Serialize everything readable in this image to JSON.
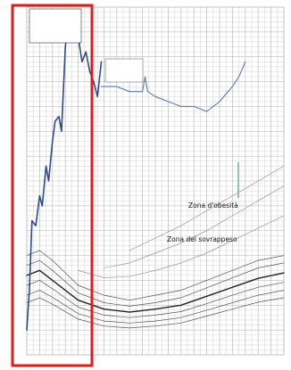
{
  "chart_data": {
    "type": "line",
    "title": "",
    "xlabel": "",
    "ylabel": "",
    "legend_box_lines": [
      "",
      "",
      "",
      ""
    ],
    "annotation_box_lines": [
      "",
      "",
      ""
    ],
    "zone_labels": {
      "obesity": "Zona d'obesità",
      "overweight": "Zona del sovrappeso"
    },
    "colors": {
      "patient": "#2d4a8a",
      "patient_tail": "#5a7ab0",
      "reference": "#555555",
      "grid": "#bdbdbd",
      "highlight": "#e01b1b",
      "vertical_marker": "#7cb89a"
    },
    "xlim": [
      0,
      20
    ],
    "ylim": [
      10,
      80
    ],
    "series": [
      {
        "kind": "patient",
        "x": [
          0,
          0.2,
          0.4,
          0.7,
          1.0,
          1.2,
          1.5,
          1.7,
          2.0,
          2.2,
          2.5,
          2.7,
          3.0,
          3.2,
          3.5,
          3.8,
          4.0,
          4.3,
          4.6,
          4.9,
          5.2,
          5.5,
          5.8
        ],
        "y": [
          15,
          23,
          37,
          36,
          42,
          40,
          48,
          45,
          53,
          57,
          58,
          55,
          72,
          76,
          76,
          75,
          74,
          69,
          71,
          67,
          65,
          62,
          69
        ]
      },
      {
        "kind": "patient-tail",
        "x": [
          5.8,
          7,
          8,
          9,
          9.2,
          9.4,
          10,
          11,
          12,
          13,
          14,
          15,
          16,
          16.5,
          17
        ],
        "y": [
          64,
          64,
          63,
          63,
          66,
          63,
          62,
          61,
          60,
          60,
          59,
          61,
          64,
          66,
          69
        ]
      },
      {
        "kind": "reference",
        "x": [
          0,
          1,
          2,
          4,
          6,
          8,
          10,
          12,
          14,
          16,
          18,
          20
        ],
        "y": [
          30,
          31,
          29,
          24,
          22,
          21,
          22,
          23,
          25,
          27,
          29,
          30
        ]
      },
      {
        "kind": "reference",
        "x": [
          0,
          1,
          2,
          4,
          6,
          8,
          10,
          12,
          14,
          16,
          18,
          20
        ],
        "y": [
          28,
          29,
          27,
          22.5,
          20.5,
          19.8,
          20.5,
          21.5,
          23.5,
          25.5,
          27.5,
          28.5
        ]
      },
      {
        "kind": "reference-bold",
        "x": [
          0,
          1,
          2,
          4,
          6,
          8,
          10,
          12,
          14,
          16,
          18,
          20
        ],
        "y": [
          26,
          27,
          25,
          21,
          19.2,
          18.6,
          19.2,
          20,
          21.8,
          23.6,
          25.4,
          26.5
        ]
      },
      {
        "kind": "reference",
        "x": [
          0,
          1,
          2,
          4,
          6,
          8,
          10,
          12,
          14,
          16,
          18,
          20
        ],
        "y": [
          24,
          25,
          23.3,
          19.6,
          18,
          17.5,
          18,
          18.7,
          20.3,
          22,
          23.6,
          24.6
        ]
      },
      {
        "kind": "reference",
        "x": [
          0,
          1,
          2,
          4,
          6,
          8,
          10,
          12,
          14,
          16,
          18,
          20
        ],
        "y": [
          22,
          23,
          21.6,
          18.3,
          16.8,
          16.4,
          16.8,
          17.5,
          19,
          20.5,
          22,
          23
        ]
      },
      {
        "kind": "reference",
        "x": [
          0,
          1,
          2,
          4,
          6,
          8,
          10,
          12,
          14,
          16,
          18,
          20
        ],
        "y": [
          20.5,
          21.5,
          20.2,
          17.2,
          15.8,
          15.4,
          15.8,
          16.4,
          17.8,
          19.2,
          20.6,
          21.5
        ]
      },
      {
        "kind": "reference-light",
        "x": [
          4,
          6,
          8,
          10,
          12,
          14,
          16,
          18,
          20
        ],
        "y": [
          27,
          25.5,
          25.8,
          27,
          28.5,
          30.5,
          33,
          35.5,
          38
        ]
      },
      {
        "kind": "reference-light",
        "x": [
          6,
          8,
          10,
          12,
          14,
          16,
          18,
          20
        ],
        "y": [
          27.5,
          28.5,
          30.5,
          32.5,
          35,
          38,
          41,
          44
        ]
      },
      {
        "kind": "reference-light",
        "x": [
          8,
          10,
          12,
          14,
          16,
          18,
          20
        ],
        "y": [
          31,
          33.5,
          36,
          39,
          42,
          45,
          48
        ]
      }
    ],
    "grid": true
  }
}
